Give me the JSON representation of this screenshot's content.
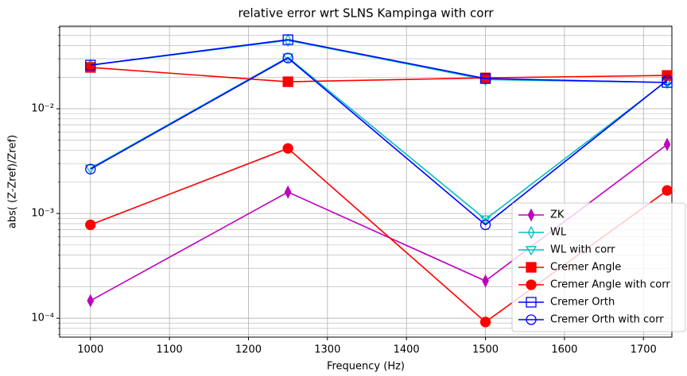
{
  "chart_data": {
    "type": "line",
    "title": "relative error wrt SLNS Kampinga with corr",
    "xlabel": "Frequency (Hz)",
    "ylabel": "abs( (Z-Zref)/Zref)",
    "x": [
      1000,
      1250,
      1500,
      1730
    ],
    "series": [
      {
        "name": "ZK",
        "color": "#bf00bf",
        "marker": "thin_diamond",
        "filled": true,
        "values": [
          0.000147,
          0.0016,
          0.000227,
          0.00456
        ]
      },
      {
        "name": "WL",
        "color": "#00bfbf",
        "marker": "thin_diamond",
        "filled": false,
        "values": [
          0.026,
          0.045,
          0.019,
          0.0178
        ]
      },
      {
        "name": "WL with corr",
        "color": "#00bfbf",
        "marker": "triangle_down",
        "filled": false,
        "values": [
          0.0027,
          0.031,
          0.00088,
          0.0185
        ]
      },
      {
        "name": "Cremer Angle",
        "color": "#ff0000",
        "marker": "square",
        "filled": true,
        "values": [
          0.0248,
          0.0181,
          0.0197,
          0.0208
        ]
      },
      {
        "name": "Cremer Angle with corr",
        "color": "#ff0000",
        "marker": "circle",
        "filled": true,
        "values": [
          0.00078,
          0.00418,
          9.2e-05,
          0.00166
        ]
      },
      {
        "name": "Cremer Orth",
        "color": "#0000ff",
        "marker": "square",
        "filled": false,
        "values": [
          0.0261,
          0.0456,
          0.0194,
          0.0178
        ]
      },
      {
        "name": "Cremer Orth with corr",
        "color": "#0000ff",
        "marker": "circle",
        "filled": false,
        "values": [
          0.00265,
          0.0305,
          0.00078,
          0.0187
        ]
      }
    ],
    "xlim": [
      961,
      1736
    ],
    "xticks": [
      1000,
      1100,
      1200,
      1300,
      1400,
      1500,
      1600,
      1700
    ],
    "ylim": [
      6.6e-05,
      0.0614
    ],
    "ylog": true,
    "yticks": [
      {
        "value": 0.0001,
        "label": "10⁻⁴"
      },
      {
        "value": 0.001,
        "label": "10⁻³"
      },
      {
        "value": 0.01,
        "label": "10⁻²"
      }
    ],
    "yminorticks": [
      7e-05,
      8e-05,
      9e-05,
      0.0002,
      0.0003,
      0.0004,
      0.0005,
      0.0006,
      0.0007,
      0.0008,
      0.0009,
      0.002,
      0.003,
      0.004,
      0.005,
      0.006,
      0.007,
      0.008,
      0.009,
      0.02,
      0.03,
      0.04,
      0.05,
      0.06
    ],
    "grid": true,
    "legend": "lower right"
  }
}
